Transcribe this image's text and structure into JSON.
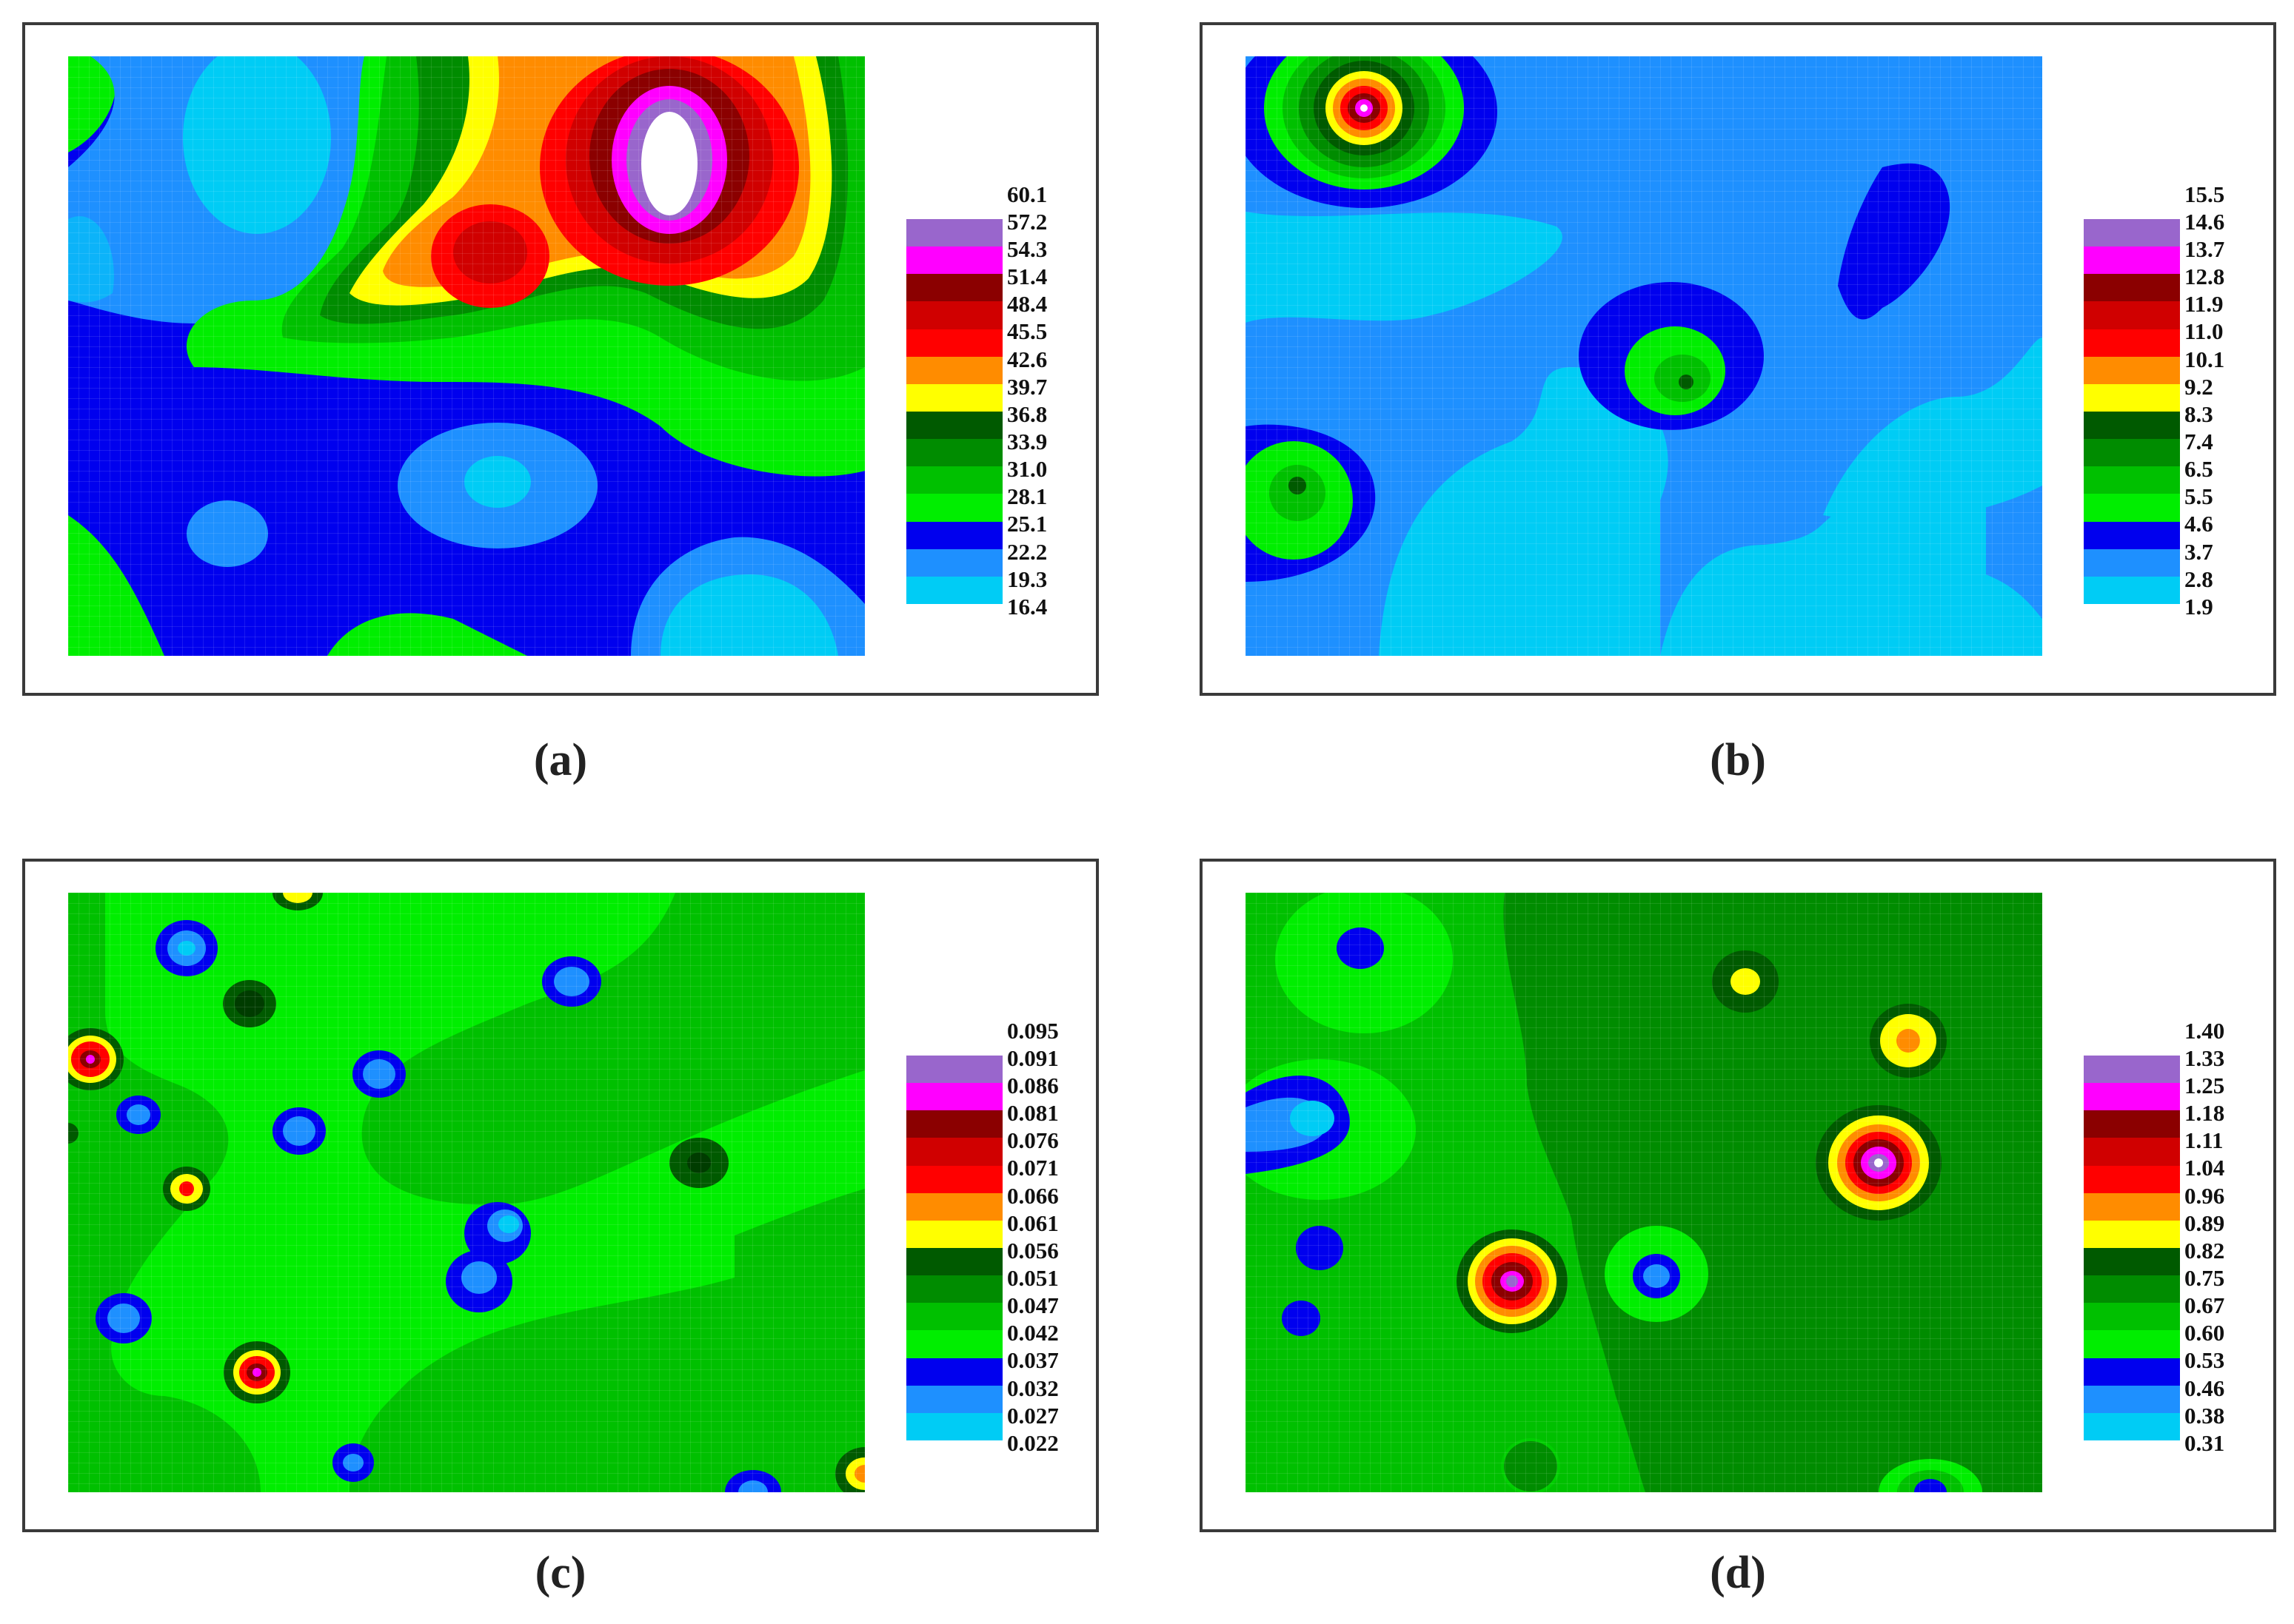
{
  "palette": [
    "#00ccf5",
    "#1e90ff",
    "#0000ee",
    "#00ee00",
    "#00c000",
    "#008c00",
    "#005a00",
    "#ffff00",
    "#ff8c00",
    "#ff0000",
    "#d00000",
    "#8b0000",
    "#ff00ff",
    "#9966cc",
    "#ffffff"
  ],
  "panels": [
    {
      "caption": "(a)",
      "legend_labels": [
        "60.1",
        "57.2",
        "54.3",
        "51.4",
        "48.4",
        "45.5",
        "42.6",
        "39.7",
        "36.8",
        "33.9",
        "31.0",
        "28.1",
        "25.1",
        "22.2",
        "19.3",
        "16.4"
      ]
    },
    {
      "caption": "(b)",
      "legend_labels": [
        "15.5",
        "14.6",
        "13.7",
        "12.8",
        "11.9",
        "11.0",
        "10.1",
        "9.2",
        "8.3",
        "7.4",
        "6.5",
        "5.5",
        "4.6",
        "3.7",
        "2.8",
        "1.9"
      ]
    },
    {
      "caption": "(c)",
      "legend_labels": [
        "0.095",
        "0.091",
        "0.086",
        "0.081",
        "0.076",
        "0.071",
        "0.066",
        "0.061",
        "0.056",
        "0.051",
        "0.047",
        "0.042",
        "0.037",
        "0.032",
        "0.027",
        "0.022"
      ]
    },
    {
      "caption": "(d)",
      "legend_labels": [
        "1.40",
        "1.33",
        "1.25",
        "1.18",
        "1.11",
        "1.04",
        "0.96",
        "0.89",
        "0.82",
        "0.75",
        "0.67",
        "0.60",
        "0.53",
        "0.46",
        "0.38",
        "0.31"
      ]
    }
  ]
}
